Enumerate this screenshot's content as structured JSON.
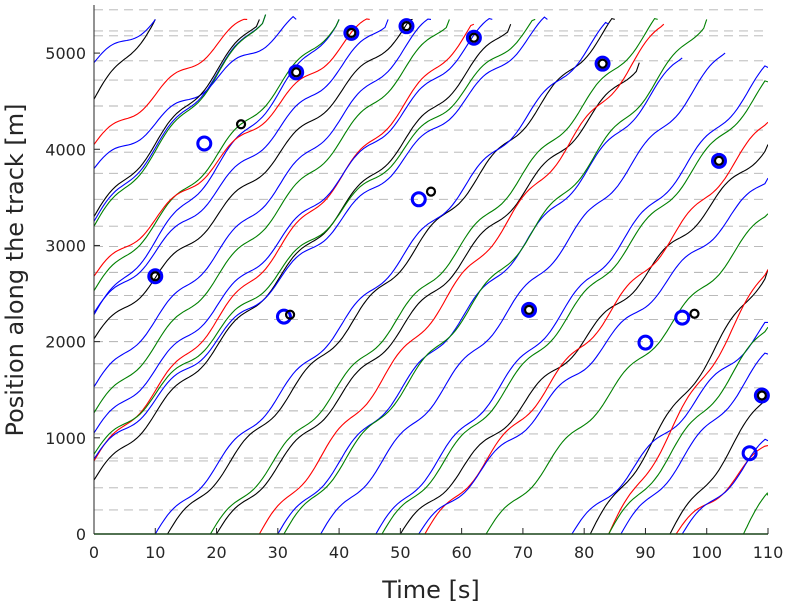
{
  "chart_data": {
    "type": "line",
    "title": "",
    "xlabel": "Time [s]",
    "ylabel": "Position along the track [m]",
    "xlim": [
      0,
      110
    ],
    "ylim": [
      0,
      5500
    ],
    "xticks": [
      0,
      10,
      20,
      30,
      40,
      50,
      60,
      70,
      80,
      90,
      100,
      110
    ],
    "yticks": [
      0,
      1000,
      2000,
      3000,
      4000,
      5000
    ],
    "grid": false,
    "legend": "none",
    "reference_lines": {
      "style": "dashed-gray",
      "y_values": [
        5450,
        5230,
        5180,
        4920,
        4720,
        4450,
        4200,
        3970,
        3750,
        3480,
        3200,
        2990,
        2720,
        2480,
        2230,
        2000,
        1770,
        1520,
        1280,
        1040,
        790,
        760,
        480,
        250
      ]
    },
    "vehicle_trajectories": [
      {
        "color": "#000000",
        "x": [
          0,
          10
        ],
        "y": [
          4520,
          5350
        ]
      },
      {
        "color": "#0000ff",
        "x": [
          0,
          10
        ],
        "y": [
          4900,
          5350
        ]
      },
      {
        "color": "#0000ff",
        "x": [
          0,
          28
        ],
        "y": [
          3250,
          5400
        ]
      },
      {
        "color": "#008000",
        "x": [
          0,
          28
        ],
        "y": [
          3200,
          5400
        ]
      },
      {
        "color": "#ff0000",
        "x": [
          0,
          25
        ],
        "y": [
          4050,
          5350
        ]
      },
      {
        "color": "#0000ff",
        "x": [
          0,
          33
        ],
        "y": [
          3800,
          5350
        ]
      },
      {
        "color": "#000000",
        "x": [
          0,
          27
        ],
        "y": [
          3300,
          5350
        ]
      },
      {
        "color": "#0000ff",
        "x": [
          0,
          40
        ],
        "y": [
          2280,
          5350
        ]
      },
      {
        "color": "#008000",
        "x": [
          0,
          40
        ],
        "y": [
          2530,
          5350
        ]
      },
      {
        "color": "#ff0000",
        "x": [
          0,
          45
        ],
        "y": [
          2680,
          5350
        ]
      },
      {
        "color": "#0000ff",
        "x": [
          0,
          48
        ],
        "y": [
          2300,
          5350
        ]
      },
      {
        "color": "#000000",
        "x": [
          0,
          52
        ],
        "y": [
          2030,
          5350
        ]
      },
      {
        "color": "#0000ff",
        "x": [
          0,
          55
        ],
        "y": [
          1530,
          5350
        ]
      },
      {
        "color": "#008000",
        "x": [
          0,
          58
        ],
        "y": [
          1260,
          5350
        ]
      },
      {
        "color": "#ff0000",
        "x": [
          0,
          62
        ],
        "y": [
          760,
          5300
        ]
      },
      {
        "color": "#0000ff",
        "x": [
          0,
          65
        ],
        "y": [
          1050,
          5350
        ]
      },
      {
        "color": "#000000",
        "x": [
          0,
          68
        ],
        "y": [
          560,
          5300
        ]
      },
      {
        "color": "#008000",
        "x": [
          0,
          72
        ],
        "y": [
          830,
          5350
        ]
      },
      {
        "color": "#0000ff",
        "x": [
          0,
          74
        ],
        "y": [
          780,
          5350
        ]
      },
      {
        "color": "#000000",
        "x": [
          12,
          85
        ],
        "y": [
          0,
          5350
        ]
      },
      {
        "color": "#0000ff",
        "x": [
          10,
          84
        ],
        "y": [
          0,
          5300
        ]
      },
      {
        "color": "#000000",
        "x": [
          20,
          89
        ],
        "y": [
          0,
          4900
        ]
      },
      {
        "color": "#008000",
        "x": [
          19,
          92
        ],
        "y": [
          0,
          5350
        ]
      },
      {
        "color": "#ff0000",
        "x": [
          27,
          93
        ],
        "y": [
          0,
          5300
        ]
      },
      {
        "color": "#0000ff",
        "x": [
          30,
          96
        ],
        "y": [
          0,
          4950
        ]
      },
      {
        "color": "#008000",
        "x": [
          31,
          100
        ],
        "y": [
          0,
          5350
        ]
      },
      {
        "color": "#0000ff",
        "x": [
          37,
          103
        ],
        "y": [
          0,
          5000
        ]
      },
      {
        "color": "#0000ff",
        "x": [
          46,
          110
        ],
        "y": [
          0,
          4850
        ]
      },
      {
        "color": "#008000",
        "x": [
          47,
          110
        ],
        "y": [
          0,
          4700
        ]
      },
      {
        "color": "#000000",
        "x": [
          50,
          110
        ],
        "y": [
          0,
          4050
        ]
      },
      {
        "color": "#ff0000",
        "x": [
          54,
          110
        ],
        "y": [
          0,
          4280
        ]
      },
      {
        "color": "#0000ff",
        "x": [
          53,
          110
        ],
        "y": [
          0,
          3700
        ]
      },
      {
        "color": "#008000",
        "x": [
          64,
          110
        ],
        "y": [
          0,
          3330
        ]
      },
      {
        "color": "#000000",
        "x": [
          81,
          110
        ],
        "y": [
          0,
          2750
        ]
      },
      {
        "color": "#0000ff",
        "x": [
          78,
          110
        ],
        "y": [
          0,
          2200
        ]
      },
      {
        "color": "#ff0000",
        "x": [
          84,
          110
        ],
        "y": [
          0,
          2750
        ]
      },
      {
        "color": "#008000",
        "x": [
          84,
          110
        ],
        "y": [
          0,
          2150
        ]
      },
      {
        "color": "#0000ff",
        "x": [
          86,
          110
        ],
        "y": [
          0,
          1870
        ]
      },
      {
        "color": "#000000",
        "x": [
          94,
          110
        ],
        "y": [
          0,
          1440
        ]
      },
      {
        "color": "#ff0000",
        "x": [
          95,
          110
        ],
        "y": [
          0,
          920
        ]
      },
      {
        "color": "#0000ff",
        "x": [
          96,
          110
        ],
        "y": [
          0,
          970
        ]
      },
      {
        "color": "#008000",
        "x": [
          106,
          110
        ],
        "y": [
          0,
          400
        ]
      }
    ],
    "event_markers_blue": [
      {
        "x": 10,
        "y": 2680
      },
      {
        "x": 18,
        "y": 4060
      },
      {
        "x": 31,
        "y": 2260
      },
      {
        "x": 33,
        "y": 4800
      },
      {
        "x": 42,
        "y": 5210
      },
      {
        "x": 51,
        "y": 5280
      },
      {
        "x": 53,
        "y": 3480
      },
      {
        "x": 62,
        "y": 5160
      },
      {
        "x": 71,
        "y": 2330
      },
      {
        "x": 83,
        "y": 4890
      },
      {
        "x": 90,
        "y": 1990
      },
      {
        "x": 96,
        "y": 2250
      },
      {
        "x": 102,
        "y": 3880
      },
      {
        "x": 107,
        "y": 840
      },
      {
        "x": 109,
        "y": 1440
      }
    ],
    "event_markers_black": [
      {
        "x": 10,
        "y": 2680
      },
      {
        "x": 24,
        "y": 4260
      },
      {
        "x": 32,
        "y": 2280
      },
      {
        "x": 33,
        "y": 4800
      },
      {
        "x": 42,
        "y": 5210
      },
      {
        "x": 51,
        "y": 5280
      },
      {
        "x": 55,
        "y": 3560
      },
      {
        "x": 62,
        "y": 5160
      },
      {
        "x": 71,
        "y": 2330
      },
      {
        "x": 83,
        "y": 4890
      },
      {
        "x": 98,
        "y": 2290
      },
      {
        "x": 102,
        "y": 3880
      },
      {
        "x": 109,
        "y": 1440
      }
    ]
  }
}
